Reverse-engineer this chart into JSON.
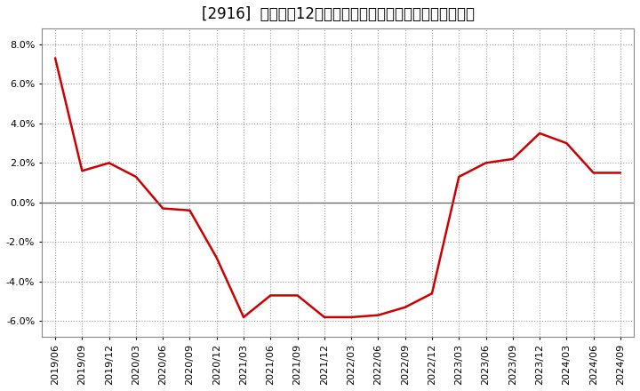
{
  "title": "[2916]  売上高の12か月移動合計の対前年同期増減率の推移",
  "line_color": "#cc0000",
  "background_color": "#ffffff",
  "plot_bg_color": "#ffffff",
  "grid_color": "#999999",
  "ylim": [
    -0.068,
    0.088
  ],
  "yticks": [
    -0.06,
    -0.04,
    -0.02,
    0.0,
    0.02,
    0.04,
    0.06,
    0.08
  ],
  "dates": [
    "2019/06",
    "2019/09",
    "2019/12",
    "2020/03",
    "2020/06",
    "2020/09",
    "2020/12",
    "2021/03",
    "2021/06",
    "2021/09",
    "2021/12",
    "2022/03",
    "2022/06",
    "2022/09",
    "2022/12",
    "2023/03",
    "2023/06",
    "2023/09",
    "2023/12",
    "2024/03",
    "2024/06",
    "2024/09"
  ],
  "values": [
    0.073,
    0.016,
    0.02,
    0.013,
    -0.003,
    -0.004,
    -0.028,
    -0.058,
    -0.047,
    -0.047,
    -0.058,
    -0.058,
    -0.057,
    -0.053,
    -0.046,
    0.013,
    0.02,
    0.022,
    0.035,
    0.03,
    0.015,
    0.015
  ],
  "title_fontsize": 12,
  "tick_fontsize": 8,
  "linewidth": 1.8
}
